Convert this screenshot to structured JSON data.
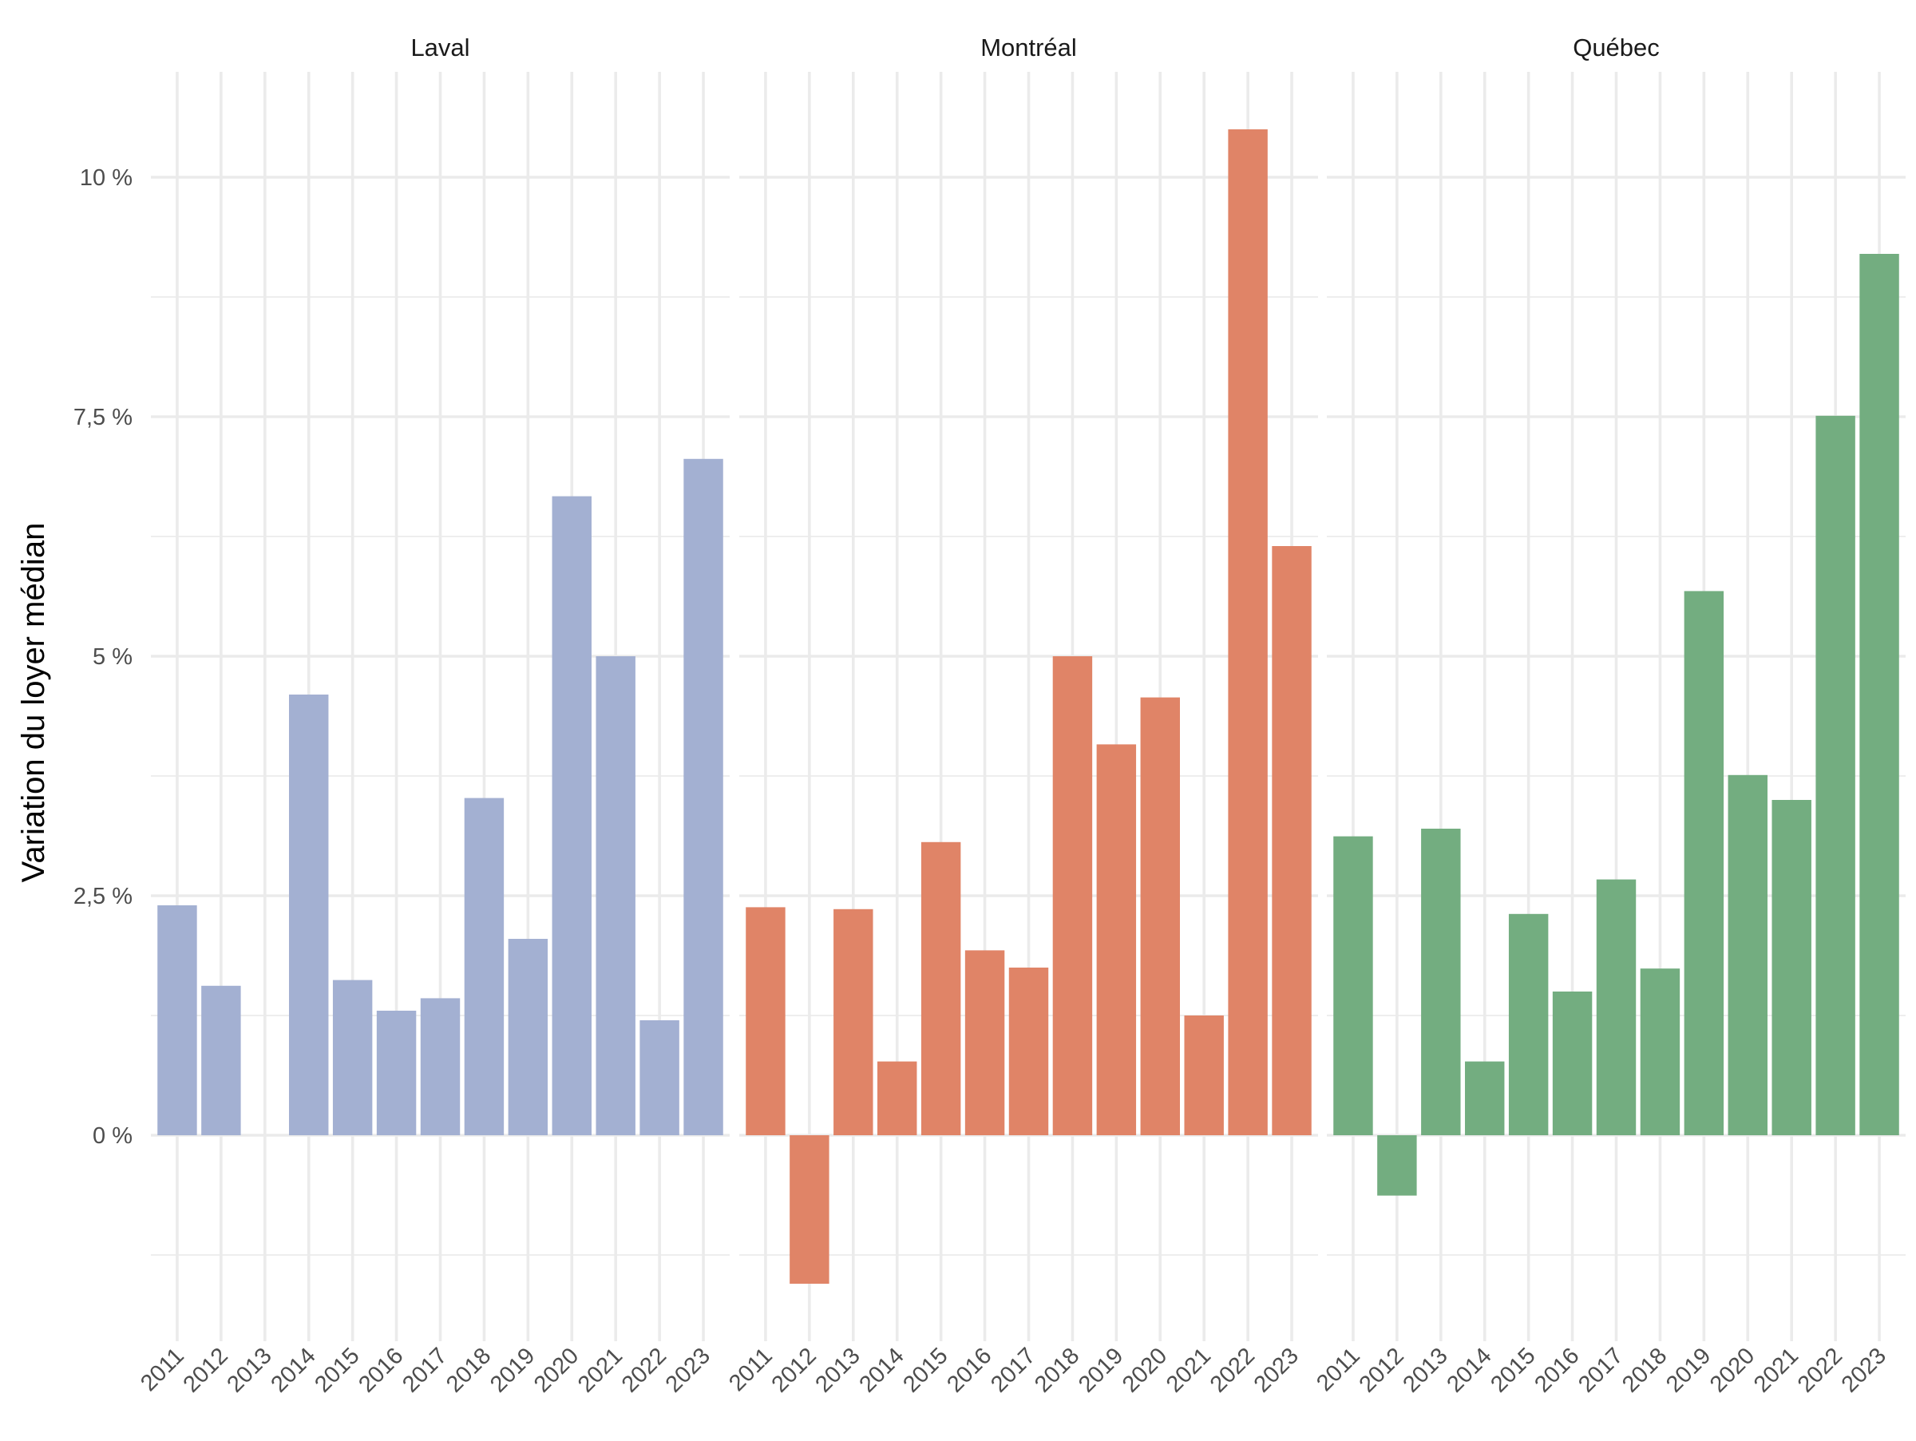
{
  "chart_data": {
    "type": "bar",
    "ylabel": "Variation du loyer médian",
    "xlabel": "",
    "title": "",
    "categories": [
      "2011",
      "2012",
      "2013",
      "2014",
      "2015",
      "2016",
      "2017",
      "2018",
      "2019",
      "2020",
      "2021",
      "2022",
      "2023"
    ],
    "ylim": [
      -2.15,
      11.1
    ],
    "y_ticks": [
      0,
      2.5,
      5,
      7.5,
      10
    ],
    "y_tick_labels": [
      "0 %",
      "2,5 %",
      "5 %",
      "7,5 %",
      "10 %"
    ],
    "grid": true,
    "legend": "none",
    "panels": [
      {
        "name": "Laval",
        "color": "#a3b0d2",
        "values": [
          2.4,
          1.56,
          0.0,
          4.6,
          1.62,
          1.3,
          1.43,
          3.52,
          2.05,
          6.67,
          5.0,
          1.2,
          7.06
        ]
      },
      {
        "name": "Montréal",
        "color": "#e08467",
        "values": [
          2.38,
          -1.55,
          2.36,
          0.77,
          3.06,
          1.93,
          1.75,
          5.0,
          4.08,
          4.57,
          1.25,
          10.5,
          6.15
        ]
      },
      {
        "name": "Québec",
        "color": "#73ad80",
        "values": [
          3.12,
          -0.63,
          3.2,
          0.77,
          2.31,
          1.5,
          2.67,
          1.74,
          5.68,
          3.76,
          3.5,
          7.51,
          9.2
        ]
      }
    ]
  }
}
